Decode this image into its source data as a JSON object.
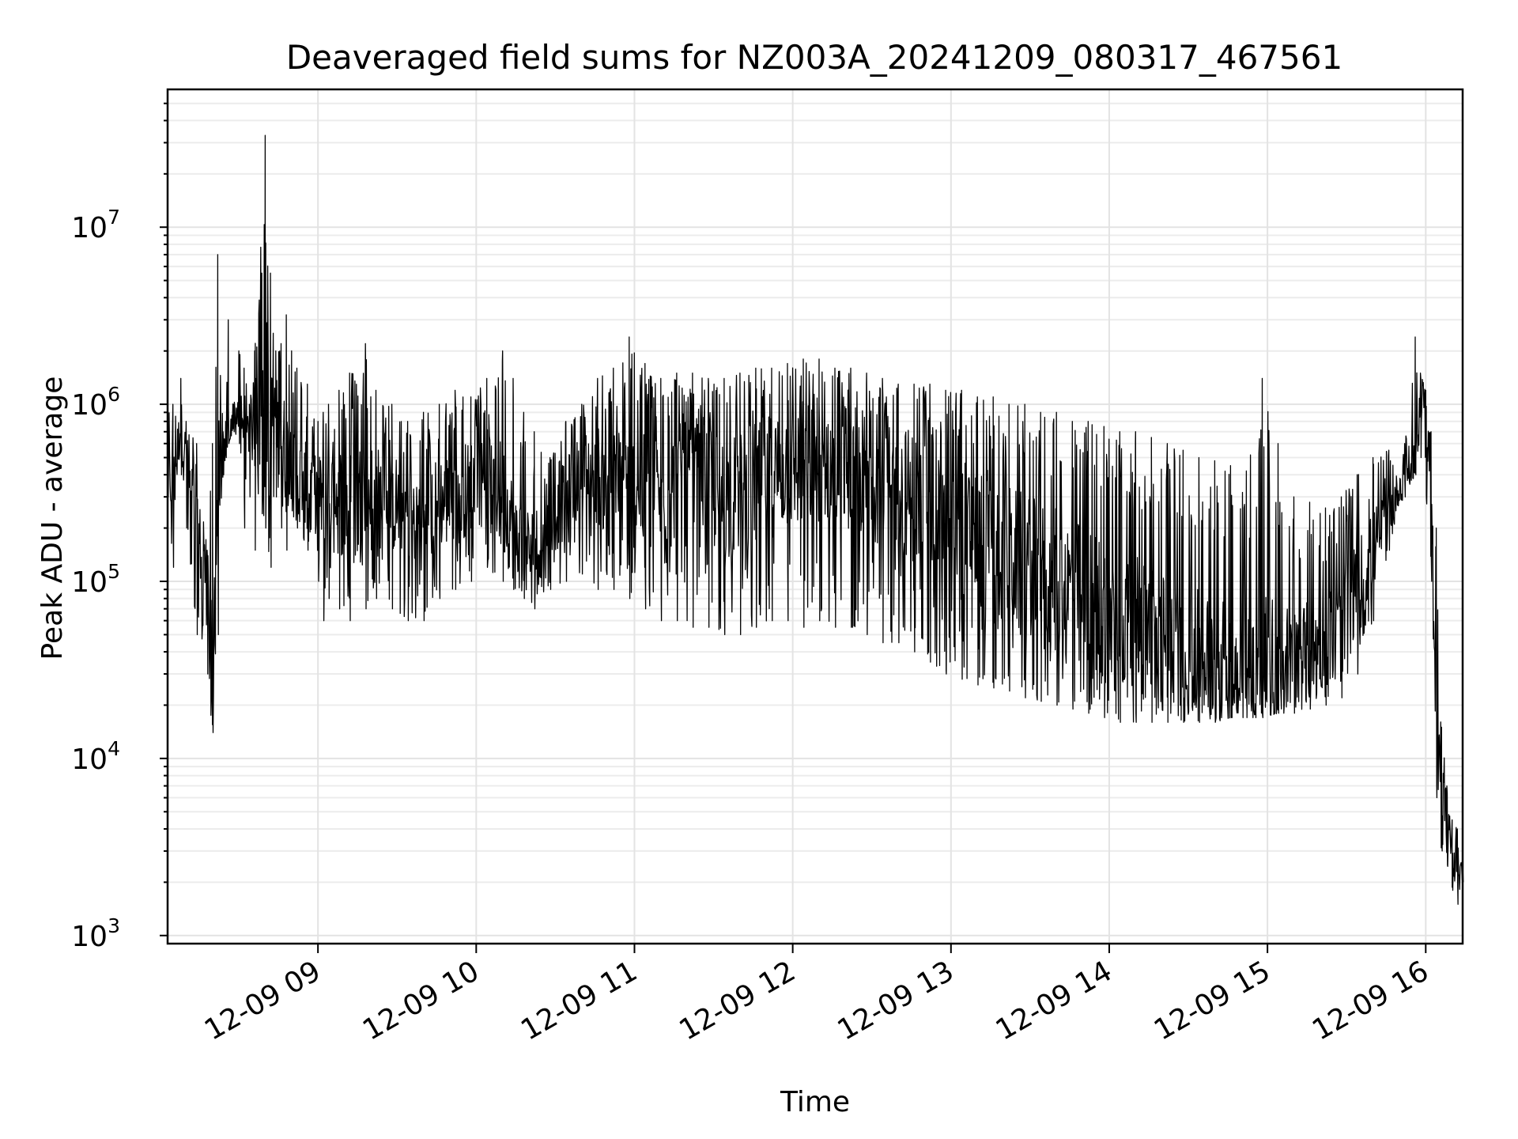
{
  "chart_data": {
    "type": "line",
    "title": "Deaveraged field sums for NZ003A_20241209_080317_467561",
    "xlabel": "Time",
    "ylabel": "Peak ADU - average",
    "y_scale": "log",
    "ylim": [
      900,
      60000000
    ],
    "xlim": [
      "2024-12-09 08:03",
      "2024-12-09 16:14"
    ],
    "grid": true,
    "line_color": "#000000",
    "x_ticks": [
      {
        "time": "2024-12-09 09:00",
        "label": "12-09 09"
      },
      {
        "time": "2024-12-09 10:00",
        "label": "12-09 10"
      },
      {
        "time": "2024-12-09 11:00",
        "label": "12-09 11"
      },
      {
        "time": "2024-12-09 12:00",
        "label": "12-09 12"
      },
      {
        "time": "2024-12-09 13:00",
        "label": "12-09 13"
      },
      {
        "time": "2024-12-09 14:00",
        "label": "12-09 14"
      },
      {
        "time": "2024-12-09 15:00",
        "label": "12-09 15"
      },
      {
        "time": "2024-12-09 16:00",
        "label": "12-09 16"
      }
    ],
    "y_ticks": [
      {
        "value": 1000,
        "base": "10",
        "exp": "3"
      },
      {
        "value": 10000,
        "base": "10",
        "exp": "4"
      },
      {
        "value": 100000,
        "base": "10",
        "exp": "5"
      },
      {
        "value": 1000000,
        "base": "10",
        "exp": "6"
      },
      {
        "value": 10000000,
        "base": "10",
        "exp": "7"
      }
    ],
    "series": [
      {
        "x": [
          "2024-12-09 08:03",
          "2024-12-09 08:05",
          "2024-12-09 08:08",
          "2024-12-09 08:10",
          "2024-12-09 08:14",
          "2024-12-09 08:18",
          "2024-12-09 08:20",
          "2024-12-09 08:22",
          "2024-12-09 08:24",
          "2024-12-09 08:25",
          "2024-12-09 08:26",
          "2024-12-09 08:28",
          "2024-12-09 08:30",
          "2024-12-09 08:32",
          "2024-12-09 08:34",
          "2024-12-09 08:36",
          "2024-12-09 08:40",
          "2024-12-09 08:42",
          "2024-12-09 08:44",
          "2024-12-09 08:46",
          "2024-12-09 08:48",
          "2024-12-09 08:50",
          "2024-12-09 08:52",
          "2024-12-09 08:56",
          "2024-12-09 09:00",
          "2024-12-09 09:02",
          "2024-12-09 09:04",
          "2024-12-09 09:08",
          "2024-12-09 09:12",
          "2024-12-09 09:18",
          "2024-12-09 09:22",
          "2024-12-09 09:28",
          "2024-12-09 09:34",
          "2024-12-09 09:40",
          "2024-12-09 09:46",
          "2024-12-09 09:52",
          "2024-12-09 09:58",
          "2024-12-09 10:04",
          "2024-12-09 10:10",
          "2024-12-09 10:14",
          "2024-12-09 10:18",
          "2024-12-09 10:22",
          "2024-12-09 10:28",
          "2024-12-09 10:34",
          "2024-12-09 10:40",
          "2024-12-09 10:46",
          "2024-12-09 10:52",
          "2024-12-09 10:58",
          "2024-12-09 11:04",
          "2024-12-09 11:10",
          "2024-12-09 11:16",
          "2024-12-09 11:22",
          "2024-12-09 11:28",
          "2024-12-09 11:34",
          "2024-12-09 11:40",
          "2024-12-09 11:46",
          "2024-12-09 11:52",
          "2024-12-09 11:58",
          "2024-12-09 12:04",
          "2024-12-09 12:10",
          "2024-12-09 12:16",
          "2024-12-09 12:22",
          "2024-12-09 12:28",
          "2024-12-09 12:34",
          "2024-12-09 12:40",
          "2024-12-09 12:46",
          "2024-12-09 12:52",
          "2024-12-09 12:58",
          "2024-12-09 13:04",
          "2024-12-09 13:10",
          "2024-12-09 13:16",
          "2024-12-09 13:22",
          "2024-12-09 13:28",
          "2024-12-09 13:34",
          "2024-12-09 13:40",
          "2024-12-09 13:46",
          "2024-12-09 13:52",
          "2024-12-09 13:58",
          "2024-12-09 14:04",
          "2024-12-09 14:10",
          "2024-12-09 14:16",
          "2024-12-09 14:22",
          "2024-12-09 14:28",
          "2024-12-09 14:34",
          "2024-12-09 14:40",
          "2024-12-09 14:46",
          "2024-12-09 14:52",
          "2024-12-09 14:58",
          "2024-12-09 15:04",
          "2024-12-09 15:10",
          "2024-12-09 15:16",
          "2024-12-09 15:22",
          "2024-12-09 15:28",
          "2024-12-09 15:34",
          "2024-12-09 15:40",
          "2024-12-09 15:46",
          "2024-12-09 15:52",
          "2024-12-09 15:56",
          "2024-12-09 15:58",
          "2024-12-09 16:00",
          "2024-12-09 16:02",
          "2024-12-09 16:04",
          "2024-12-09 16:06",
          "2024-12-09 16:08",
          "2024-12-09 16:10",
          "2024-12-09 16:12",
          "2024-12-09 16:14"
        ],
        "upper": [
          900000,
          1000000,
          1400000,
          800000,
          600000,
          150000,
          600000,
          7000000,
          700000,
          800000,
          3000000,
          1000000,
          2000000,
          1600000,
          1000000,
          2000000,
          33000000,
          5500000,
          2000000,
          2200000,
          3200000,
          2000000,
          1600000,
          1300000,
          800000,
          900000,
          1000000,
          1200000,
          1500000,
          2200000,
          1200000,
          1000000,
          800000,
          900000,
          1000000,
          1200000,
          1100000,
          1400000,
          2000000,
          1400000,
          900000,
          700000,
          500000,
          800000,
          1000000,
          1400000,
          1600000,
          2400000,
          1700000,
          1400000,
          1500000,
          1500000,
          1400000,
          1400000,
          1500000,
          1600000,
          1600000,
          1700000,
          1800000,
          1800000,
          1600000,
          1600000,
          1500000,
          1400000,
          1300000,
          1300000,
          1300000,
          1200000,
          1200000,
          1100000,
          1100000,
          1000000,
          1000000,
          900000,
          900000,
          800000,
          800000,
          750000,
          700000,
          700000,
          650000,
          600000,
          550000,
          500000,
          480000,
          450000,
          420000,
          1400000,
          600000,
          300000,
          280000,
          260000,
          300000,
          400000,
          500000,
          550000,
          600000,
          2400000,
          1500000,
          1200000,
          700000,
          200000,
          15000,
          7000,
          4500,
          4000,
          2500
        ],
        "lower": [
          300000,
          120000,
          400000,
          200000,
          50000,
          30000,
          14000,
          50000,
          400000,
          500000,
          600000,
          700000,
          600000,
          200000,
          300000,
          150000,
          200000,
          120000,
          300000,
          200000,
          150000,
          250000,
          200000,
          150000,
          100000,
          60000,
          80000,
          70000,
          60000,
          70000,
          80000,
          70000,
          60000,
          60000,
          80000,
          90000,
          100000,
          120000,
          100000,
          90000,
          80000,
          70000,
          90000,
          100000,
          110000,
          90000,
          90000,
          80000,
          70000,
          60000,
          60000,
          55000,
          55000,
          50000,
          50000,
          55000,
          60000,
          60000,
          55000,
          60000,
          55000,
          55000,
          50000,
          45000,
          45000,
          40000,
          35000,
          30000,
          28000,
          26000,
          25000,
          24000,
          22000,
          21000,
          20000,
          19000,
          18000,
          17000,
          16000,
          16000,
          16000,
          16000,
          16000,
          16000,
          16000,
          17000,
          17000,
          17000,
          18000,
          18000,
          19000,
          20000,
          22000,
          30000,
          60000,
          150000,
          300000,
          400000,
          500000,
          300000,
          100000,
          6000,
          3000,
          2500,
          1800,
          1500,
          2000
        ],
        "typical": [
          500000,
          300000,
          800000,
          500000,
          200000,
          100000,
          30000,
          300000,
          550000,
          600000,
          700000,
          800000,
          1000000,
          600000,
          700000,
          800000,
          1200000,
          700000,
          900000,
          700000,
          500000,
          500000,
          400000,
          350000,
          300000,
          300000,
          350000,
          300000,
          250000,
          300000,
          300000,
          280000,
          250000,
          220000,
          280000,
          300000,
          350000,
          400000,
          300000,
          200000,
          150000,
          150000,
          200000,
          300000,
          400000,
          400000,
          350000,
          350000,
          300000,
          300000,
          350000,
          350000,
          350000,
          300000,
          300000,
          350000,
          400000,
          450000,
          450000,
          500000,
          450000,
          450000,
          400000,
          380000,
          350000,
          300000,
          250000,
          220000,
          200000,
          180000,
          160000,
          140000,
          120000,
          110000,
          100000,
          90000,
          80000,
          70000,
          60000,
          55000,
          50000,
          45000,
          40000,
          38000,
          35000,
          34000,
          33000,
          33000,
          34000,
          35000,
          40000,
          45000,
          60000,
          90000,
          150000,
          250000,
          400000,
          500000,
          900000,
          800000,
          400000,
          30000,
          3500,
          3200,
          3000,
          2800,
          2200
        ]
      }
    ]
  }
}
